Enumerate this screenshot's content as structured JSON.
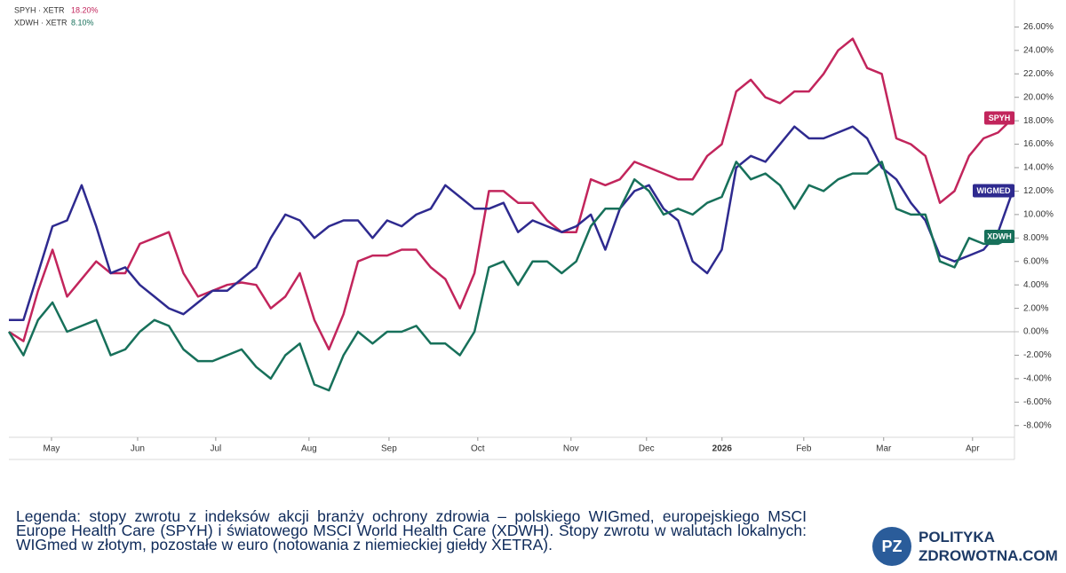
{
  "chart_data": {
    "type": "line",
    "xlim": [
      0,
      69
    ],
    "xticks": [
      {
        "value": 2.93,
        "label": "May"
      },
      {
        "value": 8.85,
        "label": "Jun"
      },
      {
        "value": 14.22,
        "label": "Jul"
      },
      {
        "value": 20.63,
        "label": "Aug"
      },
      {
        "value": 26.13,
        "label": "Sep"
      },
      {
        "value": 32.23,
        "label": "Oct"
      },
      {
        "value": 38.64,
        "label": "Nov"
      },
      {
        "value": 43.83,
        "label": "Dec"
      },
      {
        "value": 49.02,
        "label": "2026"
      },
      {
        "value": 54.64,
        "label": "Feb"
      },
      {
        "value": 60.13,
        "label": "Mar"
      },
      {
        "value": 66.24,
        "label": "Apr"
      }
    ],
    "ylim": [
      -9,
      28.3
    ],
    "yticks": [
      {
        "value": -8,
        "label": "-8.00%"
      },
      {
        "value": -6,
        "label": "-6.00%"
      },
      {
        "value": -4,
        "label": "-4.00%"
      },
      {
        "value": -2,
        "label": "-2.00%"
      },
      {
        "value": 0,
        "label": "0.00%"
      },
      {
        "value": 2,
        "label": "2.00%"
      },
      {
        "value": 4,
        "label": "4.00%"
      },
      {
        "value": 6,
        "label": "6.00%"
      },
      {
        "value": 8,
        "label": "8.00%"
      },
      {
        "value": 10,
        "label": "10.00%"
      },
      {
        "value": 12,
        "label": "12.00%"
      },
      {
        "value": 14,
        "label": "14.00%"
      },
      {
        "value": 16,
        "label": "16.00%"
      },
      {
        "value": 18,
        "label": "18.00%"
      },
      {
        "value": 20,
        "label": "20.00%"
      },
      {
        "value": 22,
        "label": "22.00%"
      },
      {
        "value": 24,
        "label": "24.00%"
      },
      {
        "value": 26,
        "label": "26.00%"
      }
    ],
    "series": [
      {
        "name": "SPYH",
        "legend": "SPYH · XETR",
        "last_label": "18.20%",
        "color": "#c2255c",
        "values": [
          0,
          -0.8,
          3.5,
          7,
          3,
          4.5,
          6,
          5,
          5,
          7.5,
          8,
          8.5,
          5,
          3,
          3.5,
          4,
          4.2,
          4,
          2,
          3,
          5,
          1,
          -1.5,
          1.5,
          6,
          6.5,
          6.5,
          7,
          7,
          5.5,
          4.5,
          2,
          5,
          12,
          12,
          11,
          11,
          9.5,
          8.5,
          8.5,
          13,
          12.5,
          13,
          14.5,
          14,
          13.5,
          13,
          13,
          15,
          16,
          20.5,
          21.5,
          20,
          19.5,
          20.5,
          20.5,
          22,
          24,
          25,
          22.5,
          22,
          16.5,
          16,
          15,
          11,
          12,
          15,
          16.5,
          17,
          18.2
        ]
      },
      {
        "name": "WIGMED",
        "color": "#2e2a8f",
        "values": [
          1,
          1,
          5,
          9,
          9.5,
          12.5,
          9,
          5,
          5.5,
          4,
          3,
          2,
          1.5,
          2.5,
          3.5,
          3.5,
          4.5,
          5.5,
          8,
          10,
          9.5,
          8,
          9,
          9.5,
          9.5,
          8,
          9.5,
          9,
          10,
          10.5,
          12.5,
          11.5,
          10.5,
          10.5,
          11,
          8.5,
          9.5,
          9,
          8.5,
          9,
          10,
          7,
          10.5,
          12,
          12.5,
          10.5,
          9.5,
          6,
          5,
          7,
          14,
          15,
          14.5,
          16,
          17.5,
          16.5,
          16.5,
          17,
          17.5,
          16.5,
          14,
          13,
          11,
          9.5,
          6.5,
          6,
          6.5,
          7,
          8.5,
          12
        ]
      },
      {
        "name": "XDWH",
        "legend": "XDWH · XETR",
        "last_label": "8.10%",
        "color": "#17705a",
        "values": [
          0,
          -2,
          1,
          2.5,
          0,
          0.5,
          1,
          -2,
          -1.5,
          0,
          1,
          0.5,
          -1.5,
          -2.5,
          -2.5,
          -2,
          -1.5,
          -3,
          -4,
          -2,
          -1,
          -4.5,
          -5,
          -2,
          0,
          -1,
          0,
          0,
          0.5,
          -1,
          -1,
          -2,
          0,
          5.5,
          6,
          4,
          6,
          6,
          5,
          6,
          9,
          10.5,
          10.5,
          13,
          12,
          10,
          10.5,
          10,
          11,
          11.5,
          14.5,
          13,
          13.5,
          12.5,
          10.5,
          12.5,
          12,
          13,
          13.5,
          13.5,
          14.5,
          10.5,
          10,
          10,
          6,
          5.5,
          8,
          7.5,
          7.5,
          8.1
        ]
      }
    ]
  },
  "caption": "Legenda: stopy zwrotu z indeksów akcji branży ochrony zdrowia – polskiego WIGmed, europejskiego MSCI Europe Health Care (SPYH) i światowego MSCI World Health Care (XDWH). Stopy zwrotu w walutach lokalnych: WIGmed w złotym, pozostałe w euro (notowania z niemieckiej giełdy XETRA).",
  "logo": {
    "mark": "PZ",
    "line1": "POLITYKA",
    "line2": "ZDROWOTNA.COM"
  }
}
